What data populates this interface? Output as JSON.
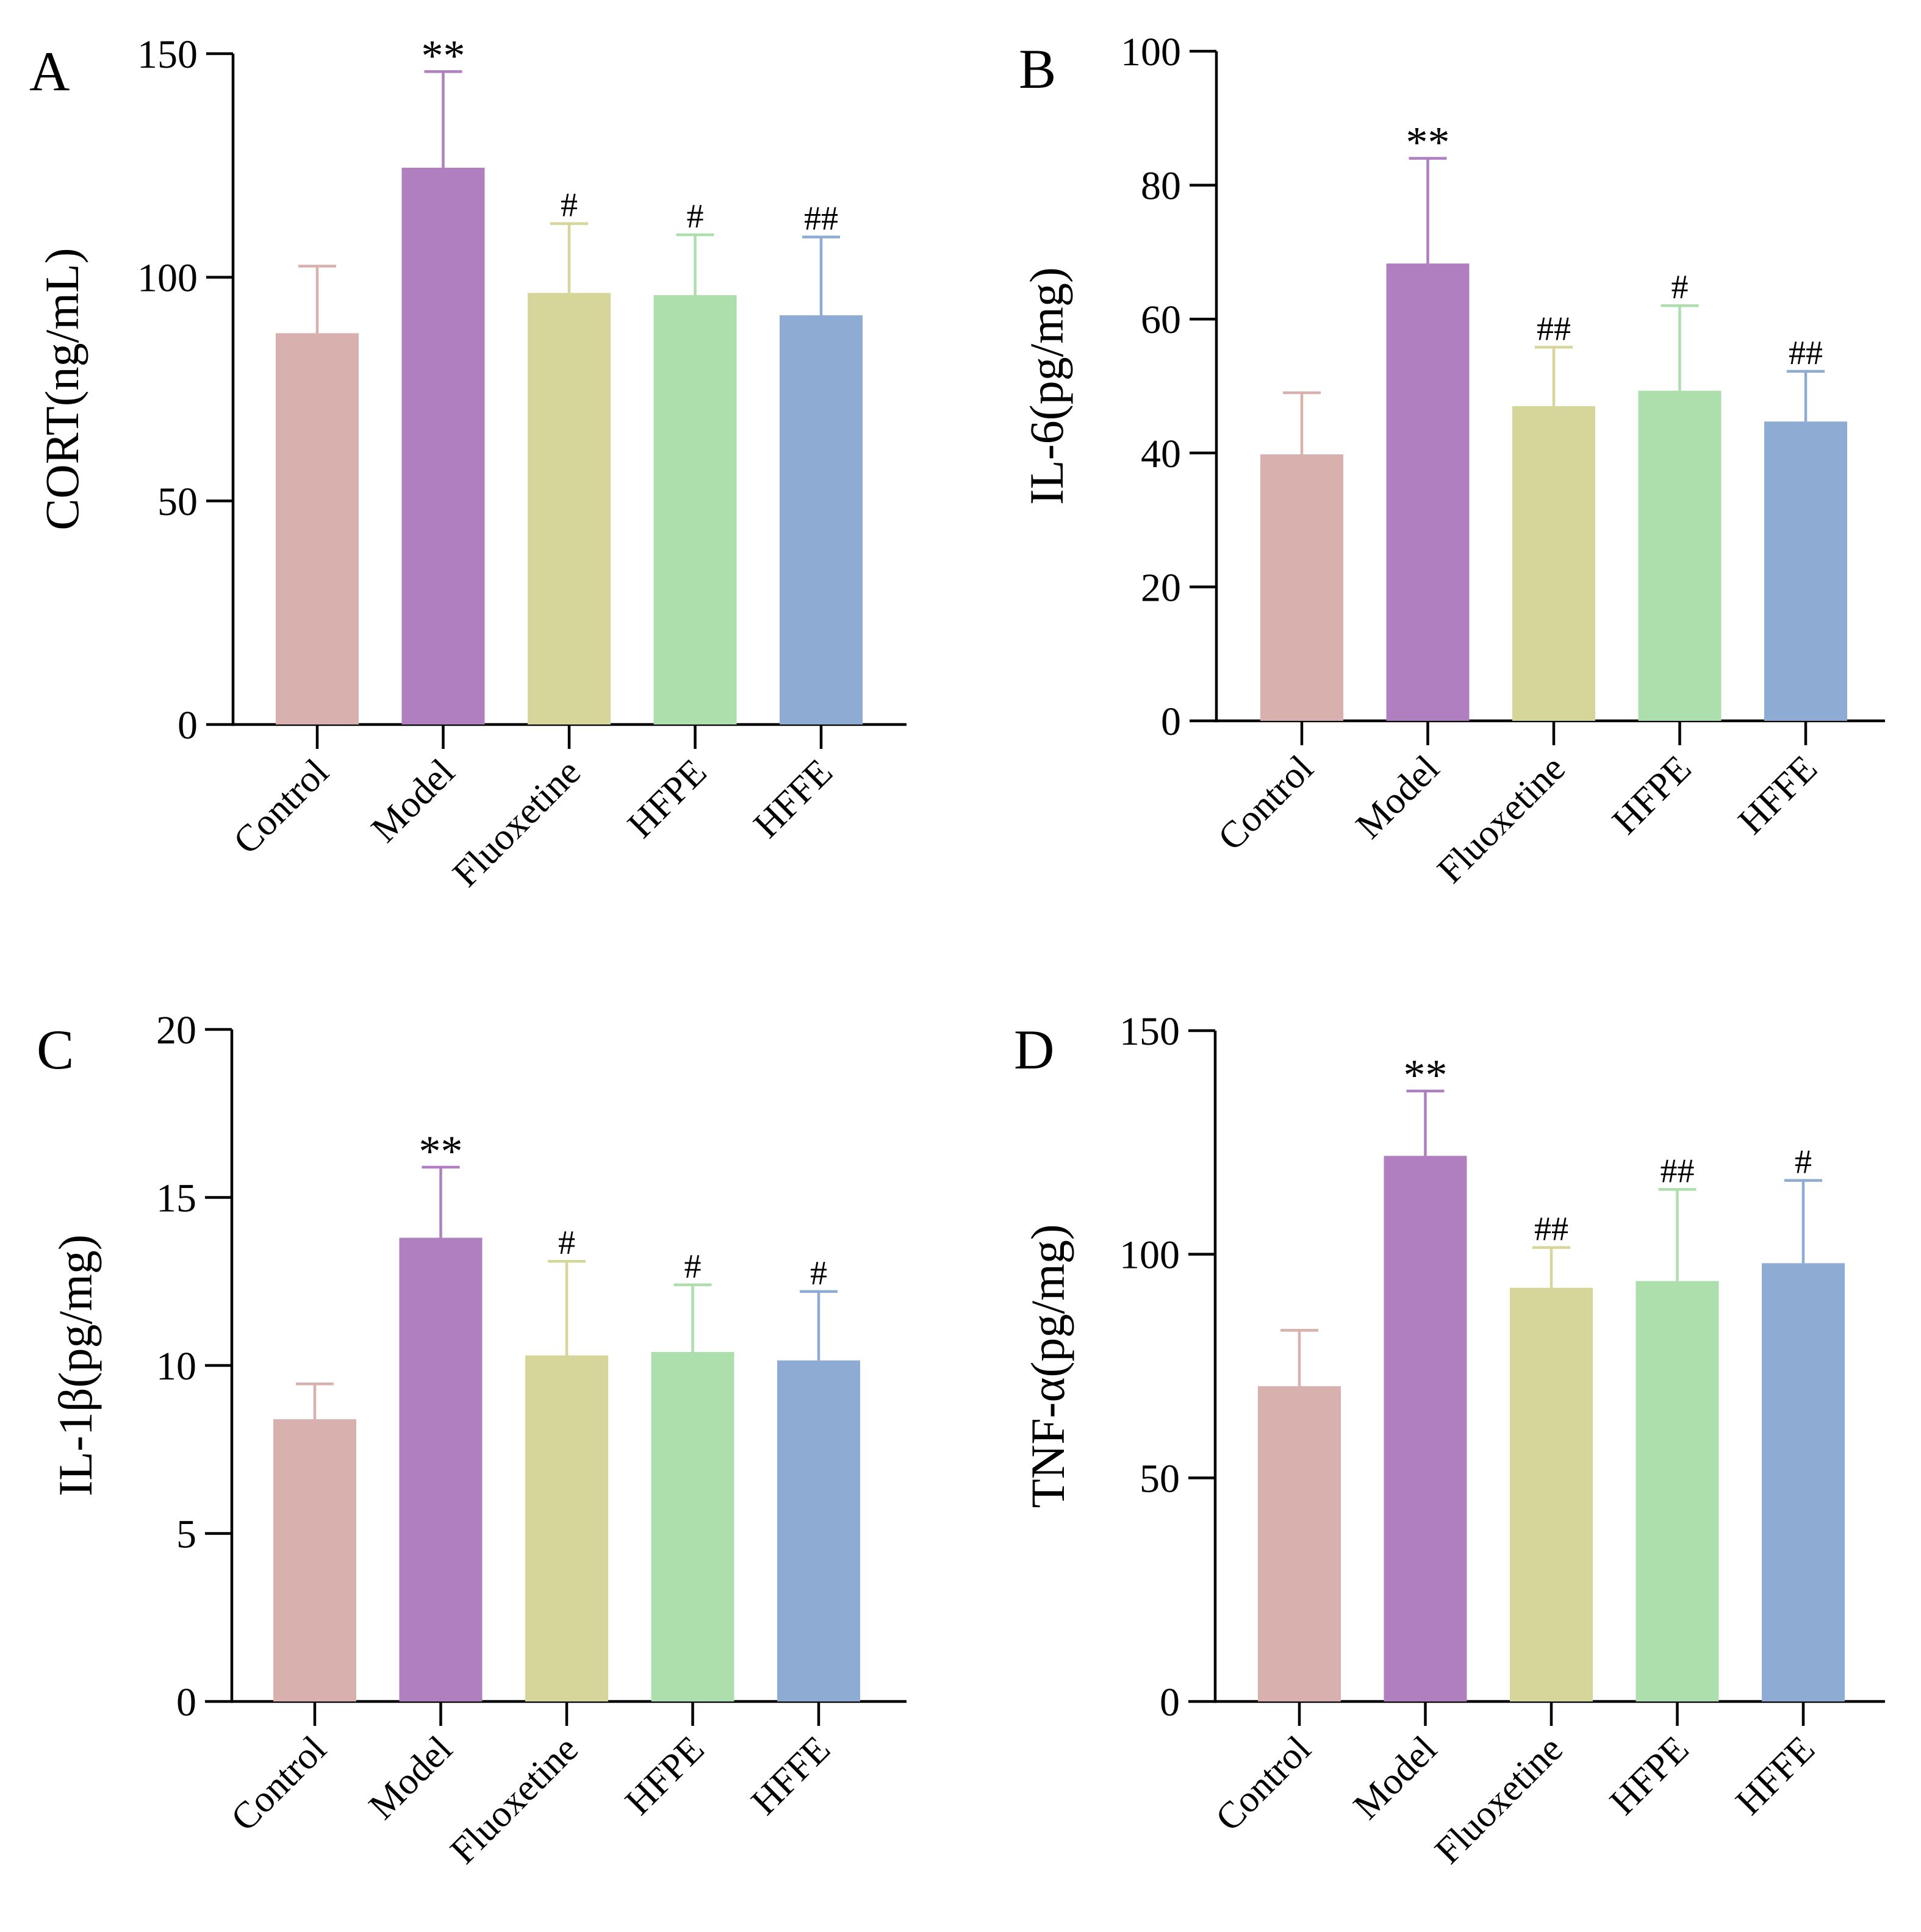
{
  "figure": {
    "colors": [
      "#d8b0ae",
      "#b07fbf",
      "#d6d69a",
      "#addfad",
      "#8eacd3"
    ]
  },
  "chart_data": [
    {
      "type": "bar",
      "panel": "A",
      "ylabel": "CORT(ng/mL)",
      "ylim": [
        0,
        150
      ],
      "yticks": [
        0,
        50,
        100,
        150
      ],
      "categories": [
        "Control",
        "Model",
        "Fluoxetine",
        "HFPE",
        "HFFE"
      ],
      "values": [
        87.5,
        124.5,
        96.5,
        96,
        91.5
      ],
      "errors": [
        15,
        21.5,
        15.5,
        13.5,
        17.5
      ],
      "significance": [
        "",
        "**",
        "#",
        "#",
        "##"
      ]
    },
    {
      "type": "bar",
      "panel": "B",
      "ylabel": "IL-6(pg/mg)",
      "ylim": [
        0,
        100
      ],
      "yticks": [
        0,
        20,
        40,
        60,
        80,
        100
      ],
      "categories": [
        "Control",
        "Model",
        "Fluoxetine",
        "HFPE",
        "HFFE"
      ],
      "values": [
        39.8,
        68.3,
        47,
        49.3,
        44.7
      ],
      "errors": [
        9.2,
        15.7,
        8.8,
        12.7,
        7.5
      ],
      "significance": [
        "",
        "**",
        "##",
        "#",
        "##"
      ]
    },
    {
      "type": "bar",
      "panel": "C",
      "ylabel": "IL-1β(pg/mg)",
      "ylim": [
        0,
        20
      ],
      "yticks": [
        0,
        5,
        10,
        15,
        20
      ],
      "categories": [
        "Control",
        "Model",
        "Fluoxetine",
        "HFPE",
        "HFFE"
      ],
      "values": [
        8.4,
        13.8,
        10.3,
        10.4,
        10.15
      ],
      "errors": [
        1.05,
        2.1,
        2.8,
        2.0,
        2.05
      ],
      "significance": [
        "",
        "**",
        "#",
        "#",
        "#"
      ]
    },
    {
      "type": "bar",
      "panel": "D",
      "ylabel": "TNF-α(pg/mg)",
      "ylim": [
        0,
        150
      ],
      "yticks": [
        0,
        50,
        100,
        150
      ],
      "categories": [
        "Control",
        "Model",
        "Fluoxetine",
        "HFPE",
        "HFFE"
      ],
      "values": [
        70.5,
        122,
        92.5,
        94,
        98
      ],
      "errors": [
        12.5,
        14.5,
        9,
        20.5,
        18.5
      ],
      "significance": [
        "",
        "**",
        "##",
        "##",
        "#"
      ]
    }
  ]
}
